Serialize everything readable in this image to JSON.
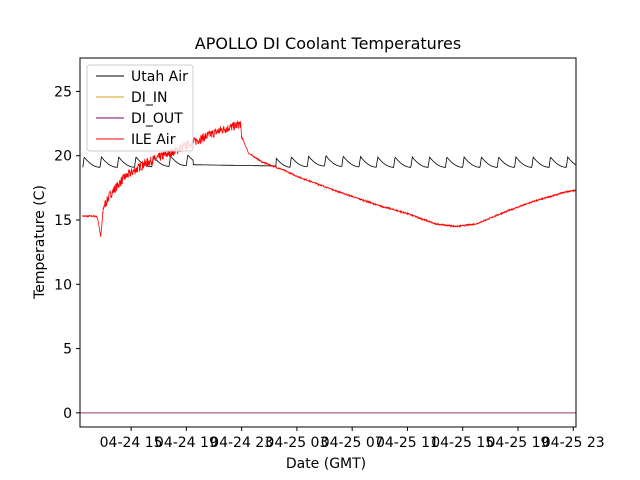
{
  "chart_data": {
    "type": "line",
    "title": "APOLLO DI Coolant Temperatures",
    "xlabel": "Date (GMT)",
    "ylabel": "Temperature (C)",
    "xlim_hours": [
      11.3,
      47.2
    ],
    "ylim": [
      -1.1,
      27.6
    ],
    "x_ticks": [
      {
        "hour": 15,
        "label": "04-24 15"
      },
      {
        "hour": 19,
        "label": "04-24 19"
      },
      {
        "hour": 23,
        "label": "04-24 23"
      },
      {
        "hour": 27,
        "label": "04-25 03"
      },
      {
        "hour": 31,
        "label": "04-25 07"
      },
      {
        "hour": 35,
        "label": "04-25 11"
      },
      {
        "hour": 39,
        "label": "04-25 15"
      },
      {
        "hour": 43,
        "label": "04-25 19"
      },
      {
        "hour": 47,
        "label": "04-25 23"
      }
    ],
    "y_ticks": [
      0,
      5,
      10,
      15,
      20,
      25
    ],
    "legend_position": "top-left",
    "series": [
      {
        "name": "Utah Air",
        "color": "#000000",
        "pattern": "sawtooth",
        "period_hours": 1.25,
        "x": [
          11.5,
          15.0,
          18.5,
          19.5,
          25.5,
          26.5,
          29.0,
          33.0,
          37.0,
          41.0,
          45.0,
          47.2
        ],
        "y": [
          19.1,
          19.1,
          19.2,
          19.3,
          19.2,
          19.1,
          19.2,
          19.1,
          19.1,
          19.1,
          19.1,
          19.1
        ],
        "amplitude": 0.8,
        "flat_segment": [
          19.5,
          25.5
        ]
      },
      {
        "name": "DI_IN",
        "color": "#d4a017",
        "x": [
          11.3,
          47.2
        ],
        "y": [
          0.0,
          0.0
        ]
      },
      {
        "name": "DI_OUT",
        "color": "#800080",
        "x": [
          11.3,
          47.2
        ],
        "y": [
          0.0,
          0.0
        ]
      },
      {
        "name": "ILE Air",
        "color": "#ff0000",
        "x": [
          11.5,
          12.5,
          12.6,
          12.8,
          13.0,
          13.5,
          14.5,
          16.0,
          18.0,
          20.0,
          21.5,
          22.5,
          22.9,
          23.0,
          23.5,
          24.5,
          26.0,
          27.0,
          30.0,
          33.0,
          35.0,
          37.0,
          38.5,
          40.0,
          42.0,
          44.0,
          46.5,
          47.2
        ],
        "y": [
          15.3,
          15.3,
          15.0,
          13.7,
          16.0,
          17.0,
          18.3,
          19.4,
          20.3,
          21.3,
          22.0,
          22.3,
          22.5,
          21.5,
          20.2,
          19.5,
          18.9,
          18.4,
          17.2,
          16.1,
          15.5,
          14.7,
          14.5,
          14.7,
          15.6,
          16.4,
          17.2,
          17.3
        ],
        "noise": 0.35
      }
    ]
  }
}
